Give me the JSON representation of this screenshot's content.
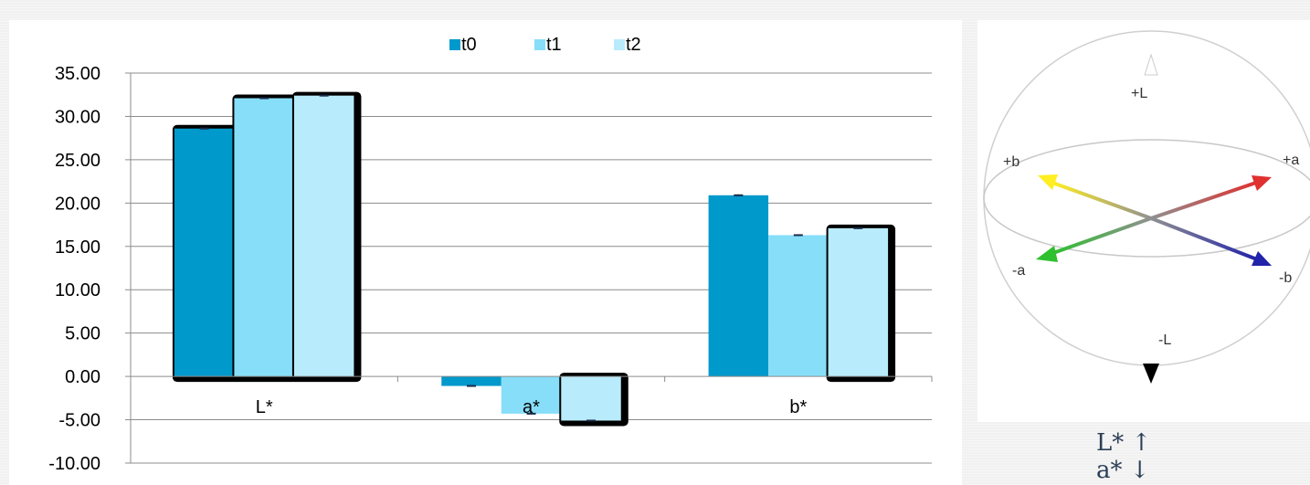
{
  "chart_data": {
    "type": "bar",
    "categories": [
      "L*",
      "a*",
      "b*"
    ],
    "series": [
      {
        "name": "t0",
        "color": "#0099cc",
        "values": [
          28.6,
          -1.1,
          20.9
        ],
        "errors": [
          0.1,
          0.1,
          0.1
        ]
      },
      {
        "name": "t1",
        "color": "#87def9",
        "values": [
          32.1,
          -4.3,
          16.3
        ],
        "errors": [
          0.1,
          0.1,
          0.1
        ]
      },
      {
        "name": "t2",
        "color": "#b8ecfc",
        "values": [
          32.4,
          -5.1,
          17.1
        ],
        "errors": [
          0.1,
          0.1,
          0.1
        ]
      }
    ],
    "y_ticks": [
      "35.00",
      "30.00",
      "25.00",
      "20.00",
      "15.00",
      "10.00",
      "5.00",
      "0.00",
      "-5.00",
      "-10.00"
    ],
    "ylim": [
      -10,
      35
    ],
    "grid": true,
    "legend_position": "top-center",
    "title": "",
    "xlabel": "",
    "ylabel": ""
  },
  "sphere": {
    "labels": {
      "plus_L": "+L",
      "minus_L": "-L",
      "plus_a": "+a",
      "minus_a": "-a",
      "plus_b": "+b",
      "minus_b": "-b"
    },
    "colors": {
      "plus_a": "#e03030",
      "minus_a": "#2ec02e",
      "plus_b": "#ffee22",
      "minus_b": "#2222aa"
    }
  },
  "caption": {
    "line1": "L* ↑",
    "line2": "a* ↓"
  }
}
